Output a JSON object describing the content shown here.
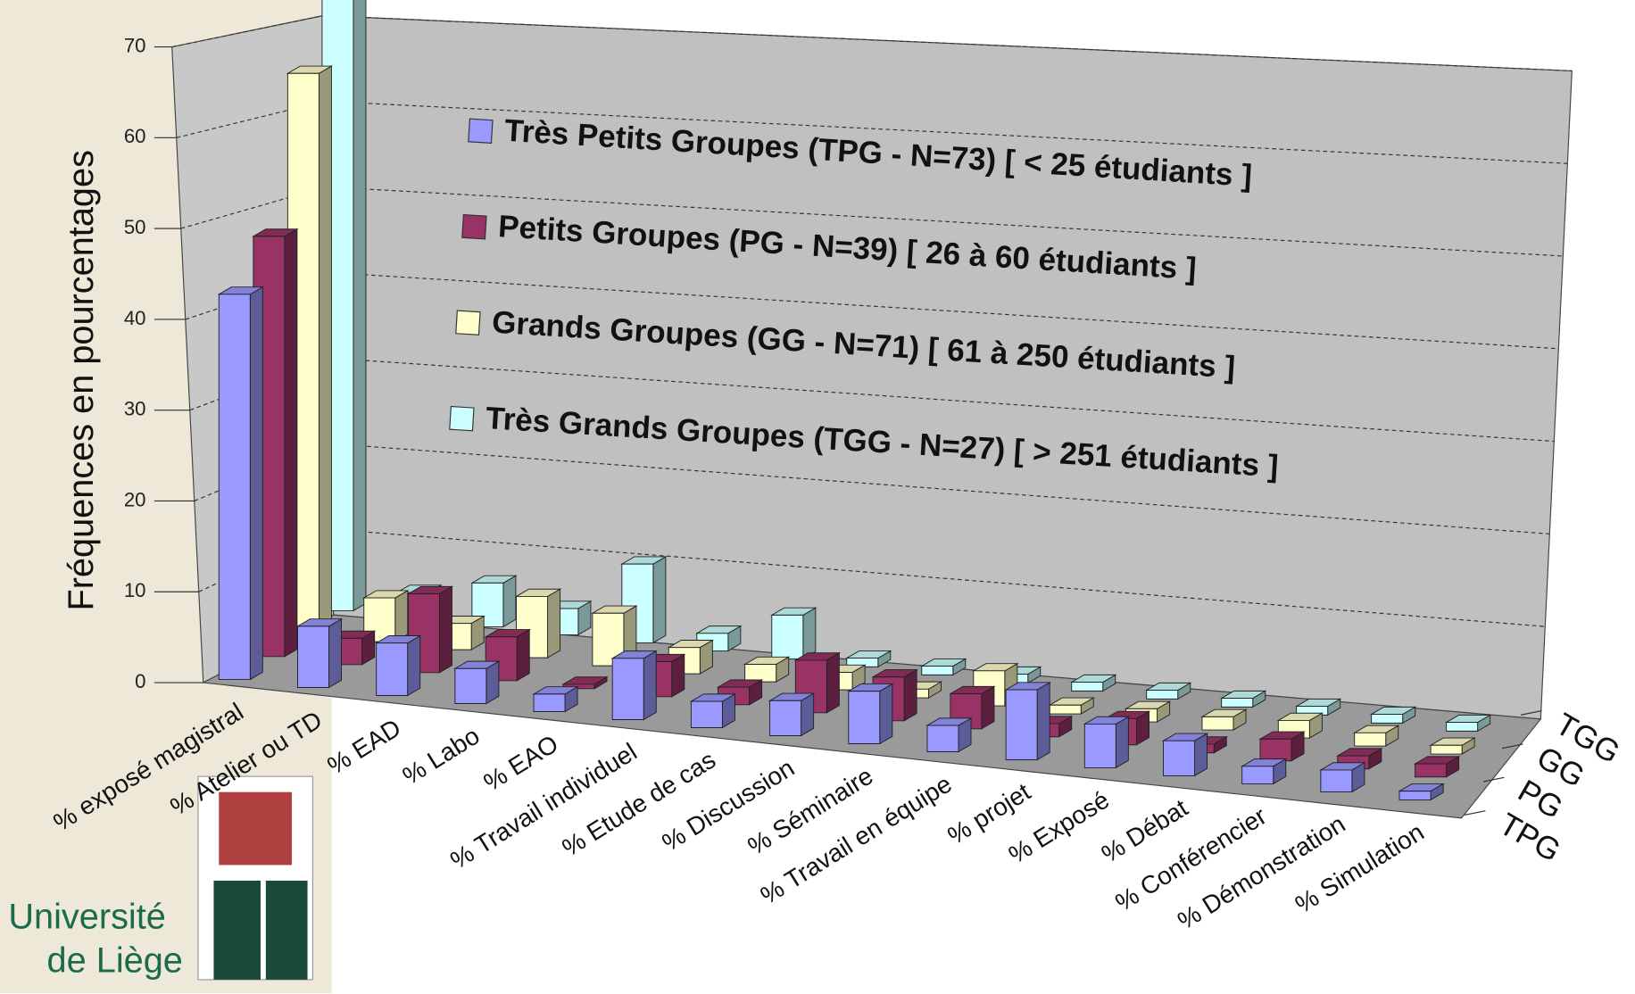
{
  "chart_data": {
    "type": "bar3d",
    "ylabel": "Fréquences en pourcentages",
    "logo_text": [
      "Université",
      "de Liège"
    ],
    "categories": [
      "% exposé magistral",
      "% Atelier ou TD",
      "% EAD",
      "% Labo",
      "% EAO",
      "% Travail individuel",
      "% Etude de cas",
      "% Discussion",
      "% Séminaire",
      "% Travail en équipe",
      "% projet",
      "% Exposé",
      "% Débat",
      "% Conférencier",
      "% Démonstration",
      "% Simulation"
    ],
    "series": [
      {
        "name": "Très Petits Groupes (TPG - N=73) [ < 25 étudiants ]",
        "short": "TPG",
        "color": "#9999ff",
        "values": [
          44,
          7,
          6,
          4,
          2,
          7,
          3,
          4,
          6,
          3,
          8,
          5,
          4,
          2,
          2.5,
          1
        ]
      },
      {
        "name": "Petits Groupes (PG - N=39) [ 26 à 60 étudiants ]",
        "short": "PG",
        "color": "#993366",
        "values": [
          48,
          3,
          9,
          5,
          0.5,
          4,
          2,
          6,
          5,
          4,
          1.5,
          3,
          1,
          2.5,
          1.5,
          1.5
        ]
      },
      {
        "name": "Grands Groupes (GG - N=71) [ 61 à 250 étudiants ]",
        "short": "GG",
        "color": "#ffffcc",
        "values": [
          64,
          5,
          3,
          7,
          6,
          3,
          2,
          2,
          1,
          4,
          1,
          1.5,
          1.5,
          2,
          1.5,
          1
        ]
      },
      {
        "name": "Très Grands Groupes (TGG - N=27) [ > 251 étudiants ]",
        "short": "TGG",
        "color": "#ccffff",
        "values": [
          72,
          3,
          5,
          3,
          9,
          2,
          5,
          1,
          1,
          1,
          1,
          1,
          1,
          1,
          1,
          1
        ]
      }
    ],
    "ylim": [
      0,
      70
    ],
    "yticks": [
      0,
      10,
      20,
      30,
      40,
      50,
      60,
      70
    ],
    "grid": true
  }
}
